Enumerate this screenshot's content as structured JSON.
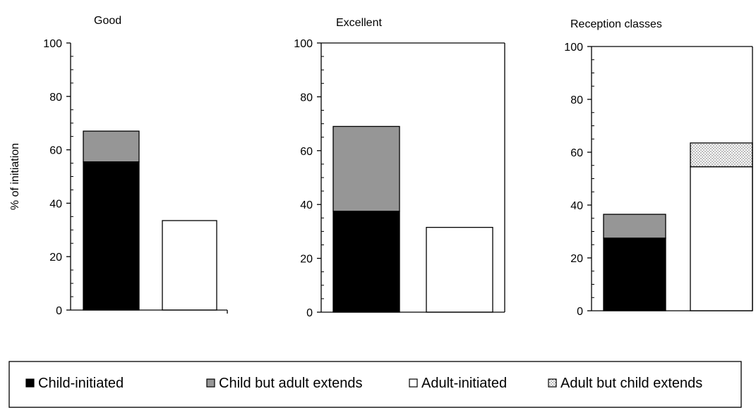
{
  "chart_data": [
    {
      "type": "bar",
      "stacked": true,
      "title": "Good",
      "ylabel": "% of initiation",
      "ylim": [
        0,
        100
      ],
      "yticks": [
        0,
        20,
        40,
        60,
        80,
        100
      ],
      "bars": [
        {
          "segments": [
            {
              "series": "Child-initiated",
              "value": 55.5
            },
            {
              "series": "Child but adult extends",
              "value": 11.5
            }
          ]
        },
        {
          "segments": [
            {
              "series": "Adult-initiated",
              "value": 33.5
            }
          ]
        }
      ]
    },
    {
      "type": "bar",
      "stacked": true,
      "title": "Excellent",
      "ylabel": "",
      "ylim": [
        0,
        100
      ],
      "yticks": [
        0,
        20,
        40,
        60,
        80,
        100
      ],
      "bars": [
        {
          "segments": [
            {
              "series": "Child-initiated",
              "value": 37.5
            },
            {
              "series": "Child but adult extends",
              "value": 31.5
            }
          ]
        },
        {
          "segments": [
            {
              "series": "Adult-initiated",
              "value": 31.5
            }
          ]
        }
      ]
    },
    {
      "type": "bar",
      "stacked": true,
      "title": "Reception classes",
      "ylabel": "",
      "ylim": [
        0,
        100
      ],
      "yticks": [
        0,
        20,
        40,
        60,
        80,
        100
      ],
      "bars": [
        {
          "segments": [
            {
              "series": "Child-initiated",
              "value": 27.5
            },
            {
              "series": "Child but adult extends",
              "value": 9
            }
          ]
        },
        {
          "segments": [
            {
              "series": "Adult-initiated",
              "value": 54.5
            },
            {
              "series": "Adult but child extends",
              "value": 9
            }
          ]
        }
      ]
    }
  ],
  "legend": {
    "placement": "bottom",
    "items": [
      {
        "label": "Child-initiated",
        "fill": "#000000"
      },
      {
        "label": "Child but adult extends",
        "fill": "#969696"
      },
      {
        "label": "Adult-initiated",
        "fill": "#ffffff"
      },
      {
        "label": "Adult but child extends",
        "fill": "dotted"
      }
    ]
  },
  "colors": {
    "Child-initiated": "#000000",
    "Child but adult extends": "#969696",
    "Adult-initiated": "#ffffff",
    "Adult but child extends": "dotted"
  }
}
